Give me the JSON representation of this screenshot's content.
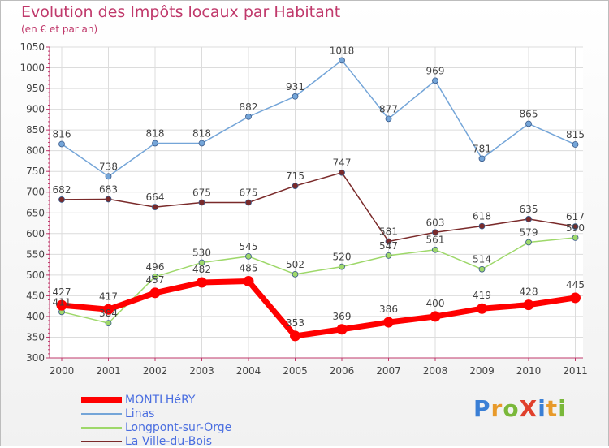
{
  "chart_data": {
    "type": "line",
    "title": "Evolution des Impôts locaux par Habitant",
    "subtitle": "(en € et par an)",
    "x": [
      "2000",
      "2001",
      "2002",
      "2003",
      "2004",
      "2005",
      "2006",
      "2007",
      "2008",
      "2009",
      "2010",
      "2011"
    ],
    "ylim": [
      300,
      1050
    ],
    "yticks": [
      "300",
      "350",
      "400",
      "450",
      "500",
      "550",
      "600",
      "650",
      "700",
      "750",
      "800",
      "850",
      "900",
      "950",
      "1000",
      "1050"
    ],
    "grid": true,
    "legend_position": "bottom-left",
    "series": [
      {
        "name": "MONTLHéRY",
        "color": "#ff0000",
        "values": [
          427,
          417,
          457,
          482,
          485,
          353,
          369,
          386,
          400,
          419,
          428,
          445
        ]
      },
      {
        "name": "Linas",
        "color": "#74a5d8",
        "values": [
          816,
          738,
          818,
          818,
          882,
          931,
          1018,
          877,
          969,
          781,
          865,
          815
        ]
      },
      {
        "name": "Longpont-sur-Orge",
        "color": "#9ed86a",
        "values": [
          411,
          384,
          496,
          530,
          545,
          502,
          520,
          547,
          561,
          514,
          579,
          590
        ]
      },
      {
        "name": "La Ville-du-Bois",
        "color": "#7a2a2a",
        "values": [
          682,
          683,
          664,
          675,
          675,
          715,
          747,
          581,
          603,
          618,
          635,
          617
        ]
      }
    ]
  },
  "logo": {
    "text": "ProXiti"
  }
}
